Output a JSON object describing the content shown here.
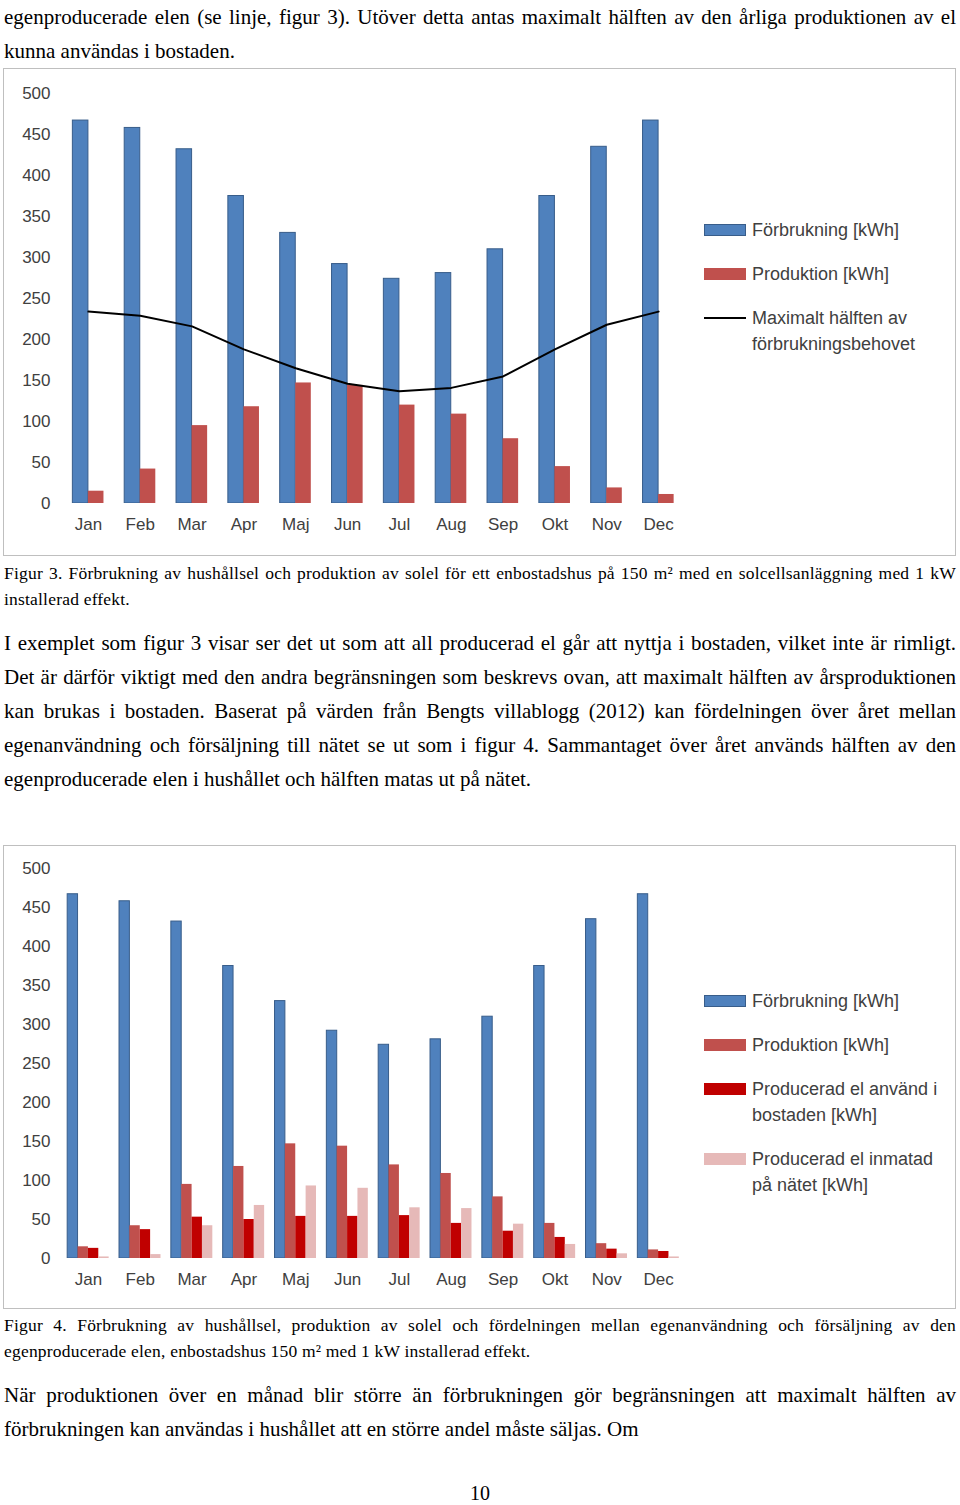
{
  "document": {
    "intro": "egenproducerade elen (se linje, figur 3). Utöver detta antas maximalt hälften av den årliga produktionen av el kunna användas i bostaden.",
    "figure3_caption": "Figur 3. Förbrukning av hushållsel och produktion av solel för ett enbostadshus på 150 m² med en solcellsanläggning med 1 kW installerad effekt.",
    "paragraph1": "I exemplet som figur 3 visar ser det ut som att all producerad el går att nyttja i bostaden, vilket inte är rimligt. Det är därför viktigt med den andra begränsningen som beskrevs ovan, att maximalt hälften av årsproduktionen kan brukas i bostaden. Baserat på värden från Bengts villablogg (2012) kan fördelningen över året mellan egenanvändning och försäljning till nätet se ut som i figur 4. Sammantaget över året används hälften av den egenproducerade elen i hushållet och hälften matas ut på nätet.",
    "figure4_caption": "Figur 4. Förbrukning av hushållsel, produktion av solel och fördelningen mellan egenanvändning och försäljning av den egenproducerade elen, enbostadshus 150 m² med 1 kW installerad effekt.",
    "paragraph2": "När produktionen över en månad blir större än förbrukningen gör begränsningen att maximalt hälften av förbrukningen kan användas i hushållet att en större andel måste säljas. Om",
    "page_number": "10"
  },
  "chart_data": [
    {
      "type": "bar",
      "categories": [
        "Jan",
        "Feb",
        "Mar",
        "Apr",
        "Maj",
        "Jun",
        "Jul",
        "Aug",
        "Sep",
        "Okt",
        "Nov",
        "Dec"
      ],
      "series": [
        {
          "name": "Förbrukning [kWh]",
          "color": "#4f81bd",
          "values": [
            467,
            458,
            432,
            375,
            330,
            292,
            274,
            281,
            310,
            375,
            435,
            467
          ]
        },
        {
          "name": "Produktion [kWh]",
          "color": "#c0504d",
          "values": [
            15,
            42,
            95,
            118,
            147,
            144,
            120,
            109,
            79,
            45,
            19,
            11
          ]
        },
        {
          "name": "Maximalt hälften av förbrukningsbehovet",
          "color": "#000000",
          "type": "line",
          "values": [
            234,
            229,
            216,
            188,
            165,
            146,
            137,
            141,
            155,
            188,
            218,
            234
          ]
        }
      ],
      "ylim": [
        0,
        500
      ],
      "yticks": [
        0,
        50,
        100,
        150,
        200,
        250,
        300,
        350,
        400,
        450,
        500
      ],
      "grid": false,
      "legend": "right"
    },
    {
      "type": "bar",
      "categories": [
        "Jan",
        "Feb",
        "Mar",
        "Apr",
        "Maj",
        "Jun",
        "Jul",
        "Aug",
        "Sep",
        "Okt",
        "Nov",
        "Dec"
      ],
      "series": [
        {
          "name": "Förbrukning [kWh]",
          "color": "#4f81bd",
          "values": [
            467,
            458,
            432,
            375,
            330,
            292,
            274,
            281,
            310,
            375,
            435,
            467
          ]
        },
        {
          "name": "Produktion [kWh]",
          "color": "#c0504d",
          "values": [
            15,
            42,
            95,
            118,
            147,
            144,
            120,
            109,
            79,
            45,
            19,
            11
          ]
        },
        {
          "name": "Producerad el använd i bostaden [kWh]",
          "color": "#c00000",
          "values": [
            13,
            37,
            53,
            50,
            54,
            54,
            55,
            45,
            35,
            27,
            12,
            9
          ]
        },
        {
          "name": "Producerad el inmatad på nätet [kWh]",
          "color": "#e6b9b8",
          "values": [
            2,
            5,
            42,
            68,
            93,
            90,
            65,
            64,
            44,
            18,
            6,
            2
          ]
        }
      ],
      "ylim": [
        0,
        500
      ],
      "yticks": [
        0,
        50,
        100,
        150,
        200,
        250,
        300,
        350,
        400,
        450,
        500
      ],
      "grid": false,
      "legend": "right"
    }
  ]
}
